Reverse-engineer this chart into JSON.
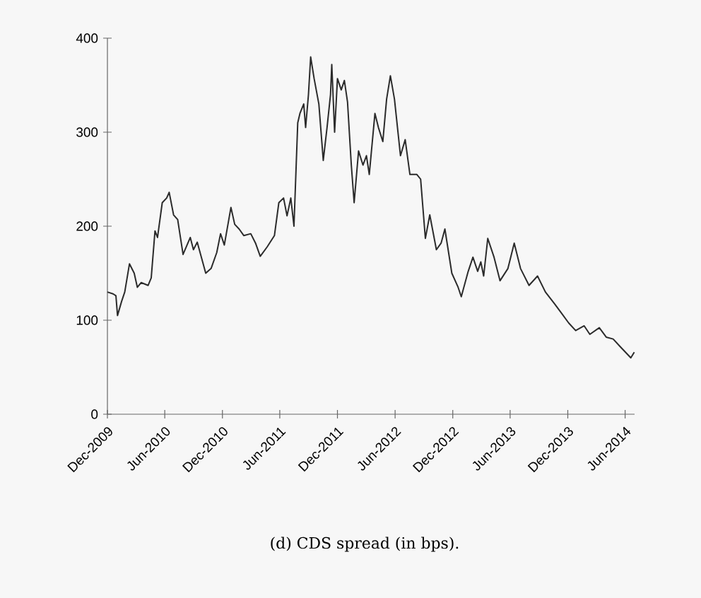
{
  "chart_data": {
    "type": "line",
    "color": "#2b2b2b",
    "x": [
      "2009-12-01",
      "2009-12-19",
      "2009-12-28",
      "2010-01-02",
      "2010-01-15",
      "2010-01-25",
      "2010-02-09",
      "2010-02-24",
      "2010-03-06",
      "2010-03-18",
      "2010-04-09",
      "2010-04-19",
      "2010-05-01",
      "2010-05-09",
      "2010-05-24",
      "2010-06-07",
      "2010-06-15",
      "2010-06-29",
      "2010-07-12",
      "2010-07-29",
      "2010-08-21",
      "2010-08-31",
      "2010-09-12",
      "2010-10-09",
      "2010-10-26",
      "2010-11-13",
      "2010-11-25",
      "2010-12-07",
      "2010-12-28",
      "2011-01-09",
      "2011-01-23",
      "2011-02-07",
      "2011-03-01",
      "2011-03-16",
      "2011-03-31",
      "2011-04-22",
      "2011-05-15",
      "2011-05-29",
      "2011-06-13",
      "2011-06-24",
      "2011-07-06",
      "2011-07-16",
      "2011-07-28",
      "2011-08-04",
      "2011-08-16",
      "2011-08-22",
      "2011-08-31",
      "2011-09-07",
      "2011-09-18",
      "2011-10-03",
      "2011-10-17",
      "2011-10-29",
      "2011-11-09",
      "2011-11-13",
      "2011-11-22",
      "2011-12-01",
      "2011-12-13",
      "2011-12-23",
      "2012-01-02",
      "2012-01-14",
      "2012-01-23",
      "2012-02-06",
      "2012-02-20",
      "2012-03-02",
      "2012-03-11",
      "2012-03-29",
      "2012-04-09",
      "2012-04-23",
      "2012-05-05",
      "2012-05-17",
      "2012-05-30",
      "2012-06-18",
      "2012-07-03",
      "2012-07-18",
      "2012-08-09",
      "2012-08-21",
      "2012-09-05",
      "2012-09-19",
      "2012-10-10",
      "2012-10-25",
      "2012-11-06",
      "2012-11-28",
      "2012-12-18",
      "2012-12-28",
      "2013-01-19",
      "2013-02-03",
      "2013-02-18",
      "2013-02-28",
      "2013-03-09",
      "2013-03-22",
      "2013-04-11",
      "2013-04-30",
      "2013-05-25",
      "2013-06-14",
      "2013-07-04",
      "2013-07-31",
      "2013-08-27",
      "2013-09-21",
      "2013-10-21",
      "2013-11-12",
      "2013-12-04",
      "2013-12-26",
      "2014-01-22",
      "2014-02-09",
      "2014-03-11",
      "2014-04-02",
      "2014-04-24",
      "2014-05-16",
      "2014-06-19",
      "2014-06-30"
    ],
    "values": [
      130,
      128,
      126,
      105,
      120,
      130,
      160,
      150,
      135,
      140,
      137,
      145,
      195,
      188,
      225,
      230,
      236,
      212,
      207,
      170,
      188,
      175,
      183,
      150,
      155,
      172,
      192,
      180,
      220,
      202,
      197,
      190,
      192,
      182,
      168,
      178,
      190,
      225,
      230,
      211,
      230,
      200,
      310,
      320,
      330,
      305,
      340,
      380,
      357,
      330,
      270,
      305,
      340,
      372,
      300,
      357,
      345,
      355,
      332,
      265,
      225,
      280,
      265,
      275,
      255,
      320,
      305,
      290,
      335,
      360,
      335,
      275,
      292,
      255,
      255,
      250,
      187,
      212,
      175,
      182,
      197,
      150,
      135,
      125,
      152,
      167,
      152,
      162,
      147,
      187,
      167,
      142,
      155,
      182,
      155,
      137,
      147,
      130,
      117,
      107,
      97,
      89,
      94,
      85,
      92,
      82,
      80,
      72,
      60,
      66
    ],
    "xlim": [
      "2009-12-01",
      "2014-07-01"
    ],
    "xticks": [
      {
        "value": "2009-12-01",
        "label": "Dec-2009"
      },
      {
        "value": "2010-06-01",
        "label": "Jun-2010"
      },
      {
        "value": "2010-12-01",
        "label": "Dec-2010"
      },
      {
        "value": "2011-06-01",
        "label": "Jun-2011"
      },
      {
        "value": "2011-12-01",
        "label": "Dec-2011"
      },
      {
        "value": "2012-06-01",
        "label": "Jun-2012"
      },
      {
        "value": "2012-12-01",
        "label": "Dec-2012"
      },
      {
        "value": "2013-06-01",
        "label": "Jun-2013"
      },
      {
        "value": "2013-12-01",
        "label": "Dec-2013"
      },
      {
        "value": "2014-06-01",
        "label": "Jun-2014"
      }
    ],
    "ylim": [
      0,
      400
    ],
    "yticks": [
      0,
      100,
      200,
      300,
      400
    ],
    "annotations": [
      "(d) CDS spread (in bps)."
    ]
  }
}
